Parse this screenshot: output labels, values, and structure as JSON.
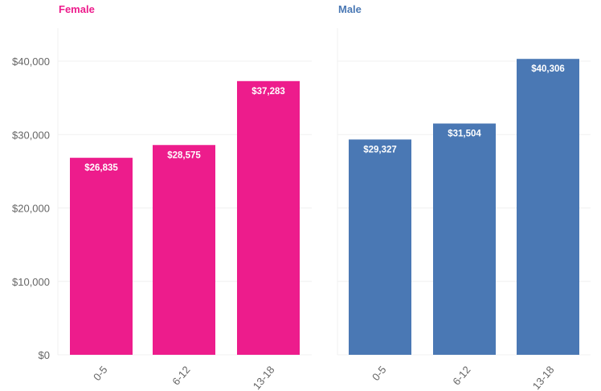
{
  "chart_data": [
    {
      "type": "bar",
      "title": "Female",
      "categories": [
        "0-5",
        "6-12",
        "13-18"
      ],
      "values": [
        26835,
        28575,
        37283
      ],
      "data_labels": [
        "$26,835",
        "$28,575",
        "$37,283"
      ],
      "color": "#ed1c8c",
      "ylim": [
        0,
        44500
      ],
      "yticks": [
        0,
        10000,
        20000,
        30000,
        40000
      ],
      "ytick_labels": [
        "$0",
        "$10,000",
        "$20,000",
        "$30,000",
        "$40,000"
      ],
      "grid": true
    },
    {
      "type": "bar",
      "title": "Male",
      "categories": [
        "0-5",
        "6-12",
        "13-18"
      ],
      "values": [
        29327,
        31504,
        40306
      ],
      "data_labels": [
        "$29,327",
        "$31,504",
        "$40,306"
      ],
      "color": "#4a78b4",
      "ylim": [
        0,
        44500
      ],
      "grid": true
    }
  ]
}
